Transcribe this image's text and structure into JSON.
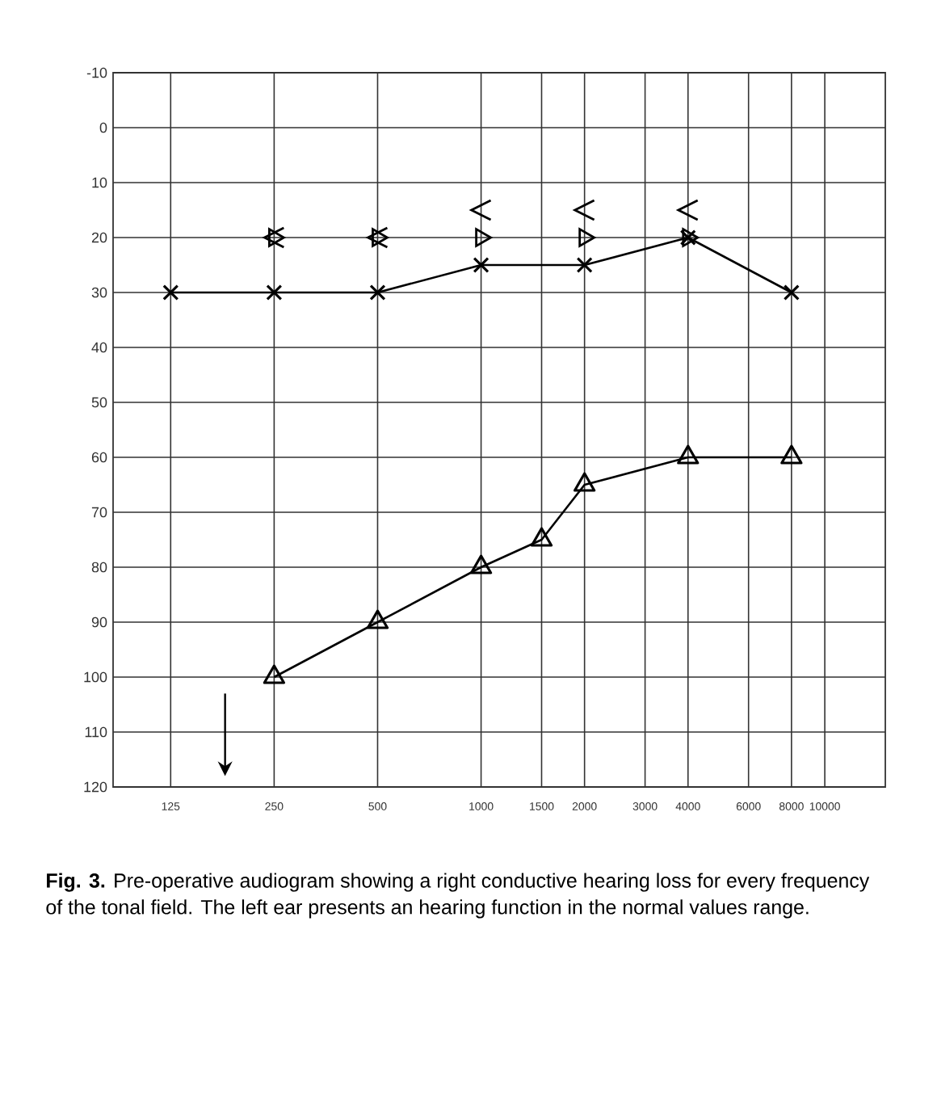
{
  "chart_data": {
    "type": "line",
    "log": "x",
    "grid": true,
    "xlim": [
      85,
      15000
    ],
    "xticks": [
      125,
      250,
      500,
      1000,
      {
        "value": 1500,
        "label": "1500"
      },
      2000,
      {
        "value": 3000,
        "label": "3000"
      },
      4000,
      {
        "value": 6000,
        "label": "6000"
      },
      8000,
      {
        "value": 10000,
        "label": "10000"
      }
    ],
    "ylim": [
      120,
      -10
    ],
    "yticks": [
      -10,
      0,
      10,
      20,
      30,
      40,
      50,
      60,
      70,
      80,
      90,
      100,
      110,
      120
    ],
    "series": [
      {
        "color": "#000000",
        "marker": "triangle",
        "line_style": "solid",
        "x": [
          250,
          500,
          1000,
          1500,
          2000,
          4000,
          8000
        ],
        "values": [
          100,
          90,
          80,
          75,
          65,
          60,
          60
        ]
      },
      {
        "color": "#000000",
        "marker": "cross",
        "line_style": "solid",
        "x": [
          125,
          250,
          500,
          1000,
          2000,
          4000,
          8000
        ],
        "values": [
          30,
          30,
          30,
          25,
          25,
          20,
          30
        ]
      },
      {
        "type": "scatter",
        "color": "#000000",
        "x": [
          250,
          500,
          1000,
          2000,
          4000
        ],
        "values": [
          20,
          20,
          20,
          20,
          20
        ]
      },
      {
        "type": "scatter",
        "color": "#000000",
        "x": [
          250,
          500,
          1000,
          2000,
          4000
        ],
        "values": [
          20,
          20,
          15,
          15,
          15
        ]
      }
    ],
    "annotations": [
      "**Fig. 3.** Pre-operative audiogram showing a right conductive hearing loss for every frequency of the tonal field. The left ear presents an hearing function in the normal values range."
    ]
  }
}
